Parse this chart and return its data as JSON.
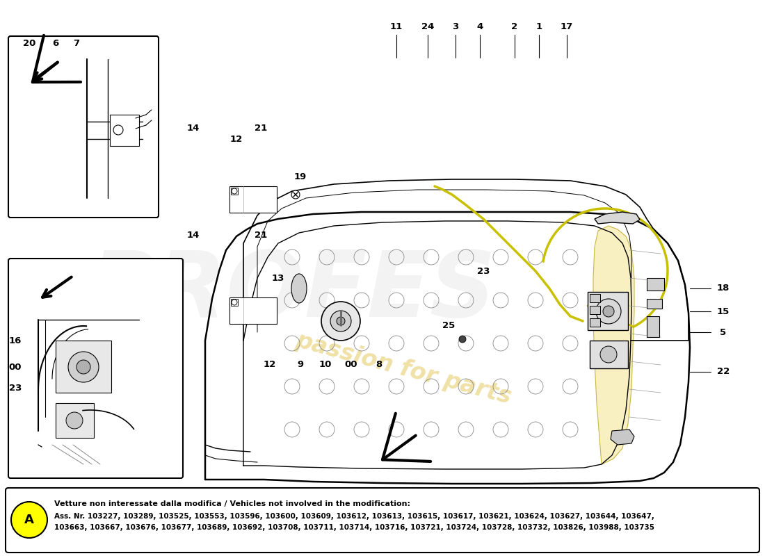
{
  "bg_color": "#ffffff",
  "annotation_box": {
    "title_text": "Vetture non interessate dalla modifica / Vehicles not involved in the modification:",
    "body_text": "Ass. Nr. 103227, 103289, 103525, 103553, 103596, 103600, 103609, 103612, 103613, 103615, 103617, 103621, 103624, 103627, 103644, 103647,\n103663, 103667, 103676, 103677, 103689, 103692, 103708, 103711, 103714, 103716, 103721, 103724, 103728, 103732, 103826, 103988, 103735",
    "circle_color": "#ffff00",
    "circle_label": "A"
  },
  "top_labels": [
    [
      "11",
      570,
      38
    ],
    [
      "24",
      615,
      38
    ],
    [
      "3",
      655,
      38
    ],
    [
      "4",
      690,
      38
    ],
    [
      "2",
      740,
      38
    ],
    [
      "1",
      775,
      38
    ],
    [
      "17",
      815,
      38
    ]
  ],
  "right_labels": [
    [
      "18",
      1040,
      415
    ],
    [
      "15",
      1040,
      448
    ],
    [
      "5",
      1040,
      478
    ],
    [
      "22",
      1040,
      535
    ]
  ],
  "left_top_labels": [
    [
      "20",
      42,
      62
    ],
    [
      "6",
      80,
      62
    ],
    [
      "7",
      110,
      62
    ]
  ],
  "left_bottom_labels": [
    [
      "16",
      22,
      490
    ],
    [
      "00",
      22,
      528
    ],
    [
      "23",
      22,
      558
    ]
  ],
  "center_labels": [
    [
      "23",
      695,
      390
    ],
    [
      "25",
      645,
      468
    ],
    [
      "8",
      545,
      525
    ],
    [
      "00",
      505,
      525
    ],
    [
      "10",
      468,
      525
    ],
    [
      "9",
      432,
      525
    ],
    [
      "12",
      388,
      525
    ],
    [
      "13",
      400,
      400
    ],
    [
      "19",
      432,
      255
    ],
    [
      "12",
      340,
      200
    ],
    [
      "21",
      375,
      185
    ],
    [
      "14",
      278,
      185
    ],
    [
      "14",
      278,
      338
    ],
    [
      "21",
      375,
      338
    ]
  ]
}
